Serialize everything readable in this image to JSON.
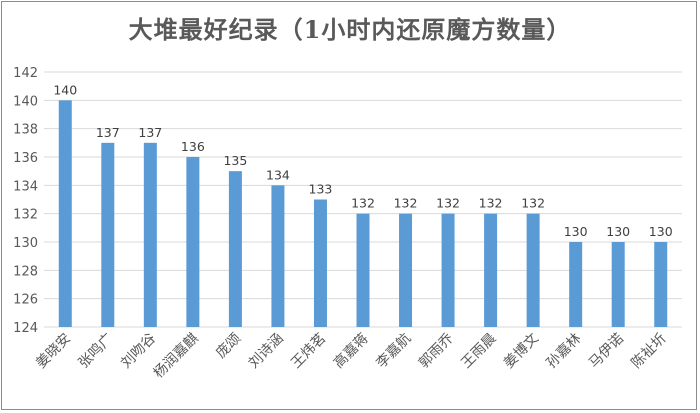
{
  "chart_data": {
    "type": "bar",
    "title": "大堆最好纪录（1小时内还原魔方数量）",
    "categories": [
      "姜晓安",
      "张鸣广",
      "刘吻谷",
      "杨润嘉麒",
      "庞颂",
      "刘诗涵",
      "王炜茗",
      "高嘉蒋",
      "李嘉航",
      "郭雨乔",
      "王雨晨",
      "姜博文",
      "孙嘉林",
      "马伊诺",
      "陈祉圻"
    ],
    "values": [
      140,
      137,
      137,
      136,
      135,
      134,
      133,
      132,
      132,
      132,
      132,
      132,
      130,
      130,
      130
    ],
    "ylim": [
      124,
      142
    ],
    "yticks": [
      124,
      126,
      128,
      130,
      132,
      134,
      136,
      138,
      140,
      142
    ],
    "xlabel": "",
    "ylabel": "",
    "grid": true,
    "legend": "none",
    "colors": {
      "bar": "#5b9bd5",
      "grid": "#d9d9d9",
      "text": "#595959"
    }
  }
}
